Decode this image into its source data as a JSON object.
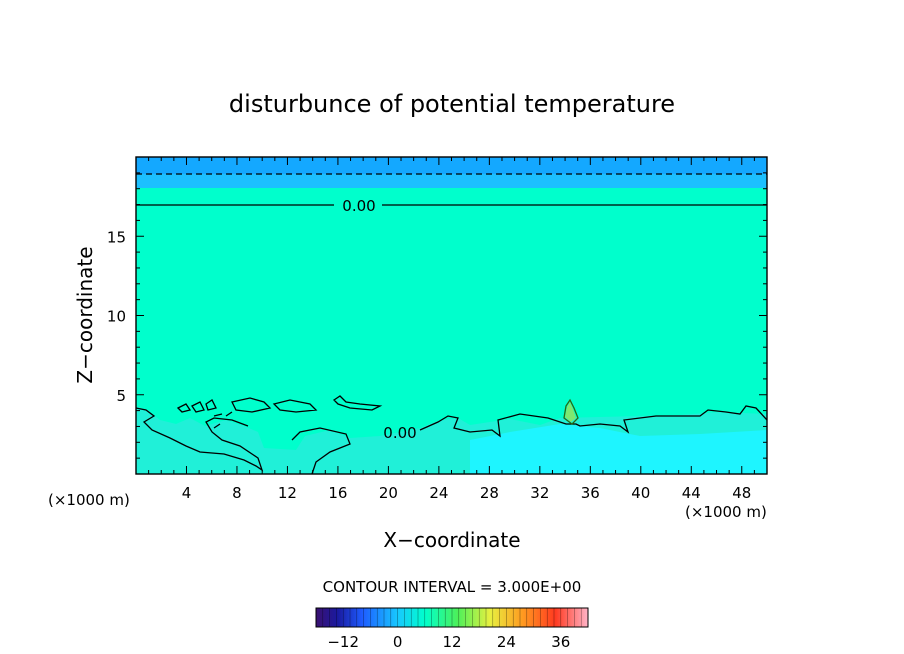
{
  "chart_data": {
    "type": "heatmap",
    "title": "disturbunce of potential temperature",
    "xlabel": "X−coordinate",
    "ylabel": "Z−coordinate",
    "x_unit_left": "(×1000 m)",
    "x_unit_right": "(×1000 m)",
    "xlim": [
      0,
      50
    ],
    "ylim": [
      0,
      20
    ],
    "x_ticks": [
      4,
      8,
      12,
      16,
      20,
      24,
      28,
      32,
      36,
      40,
      44,
      48
    ],
    "x_tick_labels": [
      "4",
      "8",
      "12",
      "16",
      "20",
      "24",
      "28",
      "32",
      "36",
      "40",
      "44",
      "48"
    ],
    "y_ticks": [
      5,
      10,
      15
    ],
    "y_tick_labels": [
      "5",
      "10",
      "15"
    ],
    "contour_interval_text": "CONTOUR INTERVAL = 3.000E+00",
    "contour_labels": [
      {
        "text": "0.00",
        "x": 17.5,
        "z": 16.8
      },
      {
        "text": "0.00",
        "x": 21.0,
        "z": 2.6
      }
    ],
    "colorbar": {
      "range": [
        -18,
        42
      ],
      "ticks": [
        -12,
        0,
        12,
        24,
        36
      ],
      "tick_labels": [
        "−12",
        "0",
        "12",
        "24",
        "36"
      ]
    },
    "colors": {
      "top_band": "#14a8ff",
      "upper_band": "#1cc0ff",
      "main_field": "#00ffcc",
      "lower_field": "#20f0d8",
      "low_cyan": "#1ef5ff",
      "warm_spot": "#7ee870"
    }
  }
}
